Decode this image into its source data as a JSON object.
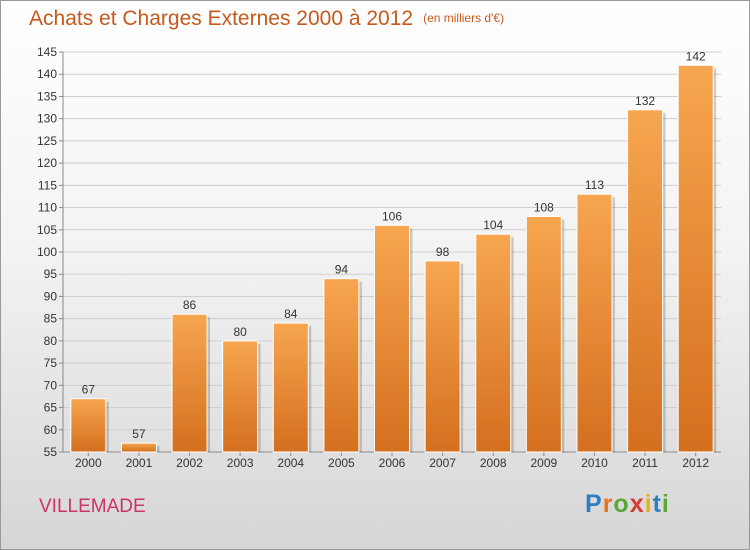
{
  "header": {
    "title": "Achats et Charges Externes 2000 à 2012",
    "unit": "(en milliers d'€)"
  },
  "footer": {
    "location": "VILLEMADE",
    "logo": "Proxiti"
  },
  "colors": {
    "bar_top": "#f7a64f",
    "bar_bottom": "#d46f1e",
    "title": "#c45a1c",
    "location": "#cc3366"
  },
  "chart_data": {
    "type": "bar",
    "title": "Achats et Charges Externes 2000 à 2012",
    "subtitle": "(en milliers d'€)",
    "categories": [
      "2000",
      "2001",
      "2002",
      "2003",
      "2004",
      "2005",
      "2006",
      "2007",
      "2008",
      "2009",
      "2010",
      "2011",
      "2012"
    ],
    "values": [
      67,
      57,
      86,
      80,
      84,
      94,
      106,
      98,
      104,
      108,
      113,
      132,
      142
    ],
    "ylim": [
      55,
      145
    ],
    "yticks": [
      55,
      60,
      65,
      70,
      75,
      80,
      85,
      90,
      95,
      100,
      105,
      110,
      115,
      120,
      125,
      130,
      135,
      140,
      145
    ],
    "grid": true,
    "legend": "none"
  }
}
